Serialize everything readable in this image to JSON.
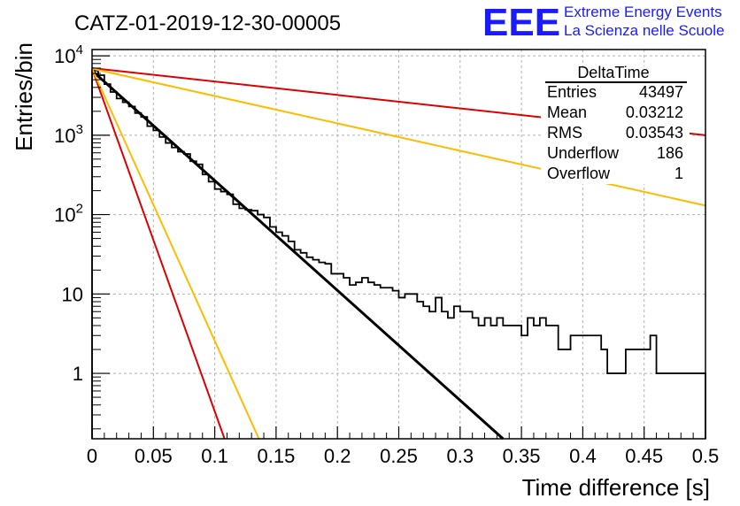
{
  "header": {
    "title": "CATZ-01-2019-12-30-00005",
    "logo_text": "EEE",
    "logo_line1": "Extreme Energy Events",
    "logo_line2": "La Scienza nelle Scuole"
  },
  "stats": {
    "name": "DeltaTime",
    "rows": [
      {
        "label": "Entries",
        "value": "43497"
      },
      {
        "label": "Mean",
        "value": "0.03212"
      },
      {
        "label": "RMS",
        "value": "0.03543"
      },
      {
        "label": "Underflow",
        "value": "186"
      },
      {
        "label": "Overflow",
        "value": "1"
      }
    ]
  },
  "chart_data": {
    "type": "line",
    "xlabel": "Time difference [s]",
    "ylabel": "Entries/bin",
    "xlim": [
      0,
      0.5
    ],
    "ylim": [
      0.15,
      12000
    ],
    "yscale": "log",
    "grid": true,
    "legend": "top-right",
    "x_ticks": [
      {
        "v": 0,
        "label": "0"
      },
      {
        "v": 0.05,
        "label": "0.05"
      },
      {
        "v": 0.1,
        "label": "0.1"
      },
      {
        "v": 0.15,
        "label": "0.15"
      },
      {
        "v": 0.2,
        "label": "0.2"
      },
      {
        "v": 0.25,
        "label": "0.25"
      },
      {
        "v": 0.3,
        "label": "0.3"
      },
      {
        "v": 0.35,
        "label": "0.35"
      },
      {
        "v": 0.4,
        "label": "0.4"
      },
      {
        "v": 0.45,
        "label": "0.45"
      },
      {
        "v": 0.5,
        "label": "0.5"
      }
    ],
    "y_ticks": [
      {
        "v": 1,
        "label": "1"
      },
      {
        "v": 10,
        "label": "10"
      },
      {
        "v": 100,
        "base": "10",
        "exp": "2"
      },
      {
        "v": 1000,
        "base": "10",
        "exp": "3"
      },
      {
        "v": 10000,
        "base": "10",
        "exp": "4"
      }
    ],
    "histogram": {
      "bin_width": 0.005,
      "counts": [
        6500,
        5700,
        4400,
        3500,
        2900,
        2600,
        2300,
        1900,
        1700,
        1300,
        1150,
        950,
        800,
        700,
        620,
        580,
        470,
        430,
        320,
        260,
        210,
        195,
        180,
        135,
        120,
        115,
        112,
        100,
        92,
        70,
        60,
        54,
        46,
        36,
        33,
        29,
        27,
        25,
        24,
        18,
        18,
        16,
        13,
        14,
        16,
        14,
        13,
        12,
        12,
        11,
        9,
        10,
        10,
        8,
        7,
        6,
        9,
        6,
        5,
        7,
        6,
        6,
        5,
        4,
        5,
        4,
        5,
        4,
        4,
        4,
        3,
        5,
        4,
        5,
        4,
        4,
        2,
        2,
        3,
        3,
        3,
        3,
        3,
        2,
        1,
        1,
        1,
        2,
        2,
        2,
        2,
        3,
        1,
        1,
        1,
        1,
        1,
        1,
        1,
        1
      ]
    },
    "series": [
      {
        "color": "#000000",
        "width": 3,
        "points": [
          [
            0,
            6500
          ],
          [
            0.335,
            0.15
          ]
        ]
      },
      {
        "color": "#dd0000",
        "width": 2,
        "points": [
          [
            0,
            7000
          ],
          [
            0.5,
            1000
          ]
        ]
      },
      {
        "color": "#ffbb00",
        "width": 2,
        "points": [
          [
            0,
            6900
          ],
          [
            0.5,
            130
          ]
        ]
      },
      {
        "color": "#dd0000",
        "width": 2,
        "points": [
          [
            0,
            6900
          ],
          [
            0.108,
            0.15
          ]
        ]
      },
      {
        "color": "#ffbb00",
        "width": 2,
        "points": [
          [
            0,
            6900
          ],
          [
            0.136,
            0.15
          ]
        ]
      }
    ]
  }
}
